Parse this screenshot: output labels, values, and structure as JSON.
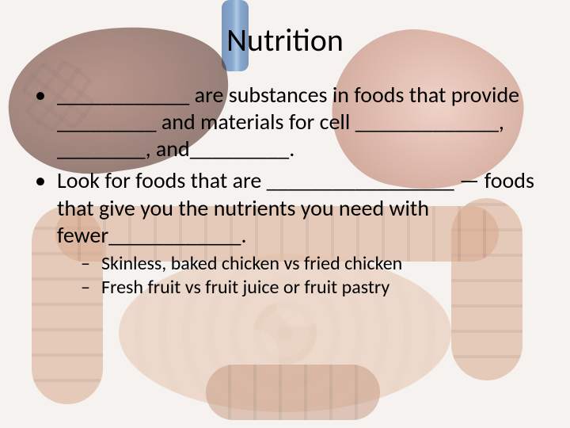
{
  "title": "Nutrition",
  "bullets": {
    "b1": "____________ are substances in foods that provide _________ and materials for cell _____________, ________, and_________.",
    "b2": "Look for foods that are _________________ — foods that give you the nutrients you need with fewer____________."
  },
  "sub": {
    "s1": "Skinless, baked chicken vs fried chicken",
    "s2": "Fresh fruit vs fruit juice or fruit pastry"
  },
  "style": {
    "slide_width": 720,
    "slide_height": 540,
    "title_fontsize": 40,
    "bullet_fontsize": 28,
    "sub_fontsize": 24,
    "text_color": "#000000",
    "background_base": "#f5f2ef",
    "anatomy_colors": {
      "liver": "#6a3528",
      "stomach": "#d79a86",
      "tube": "#2a6ab8",
      "colon": "#d9a98d",
      "small_intestine": "#e8c6af"
    },
    "anatomy_opacity": 0.55
  }
}
